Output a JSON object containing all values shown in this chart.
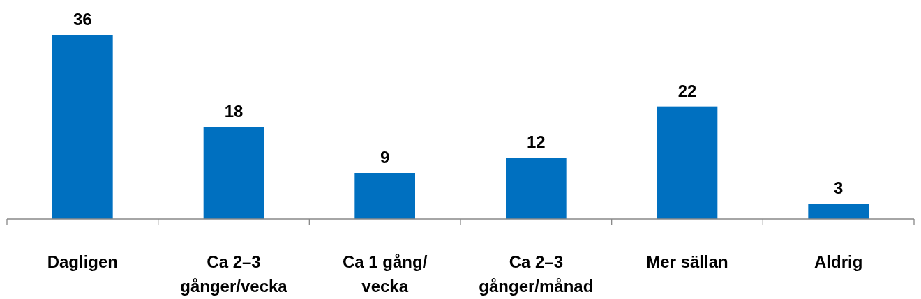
{
  "chart_data": {
    "type": "bar",
    "categories": [
      "Dagligen",
      "Ca 2–3\ngånger/vecka",
      "Ca 1 gång/\nvecka",
      "Ca 2–3\ngånger/månad",
      "Mer sällan",
      "Aldrig"
    ],
    "values": [
      36,
      18,
      9,
      12,
      22,
      3
    ],
    "color": "#0070c0",
    "data_labels": true
  }
}
